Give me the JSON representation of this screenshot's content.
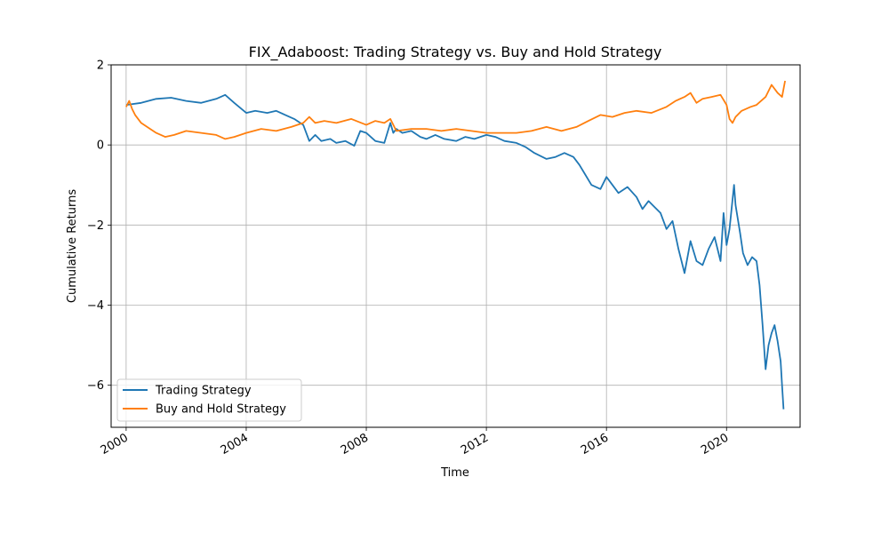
{
  "chart_data": {
    "type": "line",
    "title": "FIX_Adaboost: Trading Strategy vs. Buy and Hold Strategy",
    "xlabel": "Time",
    "ylabel": "Cumulative Returns",
    "xlim": [
      1999.5,
      2022.45
    ],
    "ylim": [
      -7.05,
      2.0
    ],
    "x_ticks": [
      2000,
      2004,
      2008,
      2012,
      2016,
      2020
    ],
    "x_tick_labels": [
      "2000",
      "2004",
      "2008",
      "2012",
      "2016",
      "2020"
    ],
    "y_ticks": [
      2,
      0,
      -2,
      -4,
      -6
    ],
    "y_tick_labels": [
      "2",
      "0",
      "−2",
      "−4",
      "−6"
    ],
    "grid": true,
    "legend_position": "lower-left",
    "series": [
      {
        "name": "Trading Strategy",
        "color": "#1f77b4",
        "x": [
          2000.0,
          2000.5,
          2001.0,
          2001.5,
          2002.0,
          2002.5,
          2003.0,
          2003.3,
          2003.6,
          2004.0,
          2004.3,
          2004.7,
          2005.0,
          2005.3,
          2005.6,
          2005.9,
          2006.1,
          2006.3,
          2006.5,
          2006.8,
          2007.0,
          2007.3,
          2007.6,
          2007.8,
          2008.0,
          2008.3,
          2008.6,
          2008.8,
          2008.9,
          2009.0,
          2009.2,
          2009.5,
          2009.8,
          2010.0,
          2010.3,
          2010.6,
          2011.0,
          2011.3,
          2011.6,
          2012.0,
          2012.3,
          2012.6,
          2013.0,
          2013.3,
          2013.6,
          2014.0,
          2014.3,
          2014.6,
          2014.9,
          2015.1,
          2015.3,
          2015.5,
          2015.8,
          2016.0,
          2016.2,
          2016.4,
          2016.7,
          2017.0,
          2017.2,
          2017.4,
          2017.6,
          2017.8,
          2018.0,
          2018.2,
          2018.4,
          2018.6,
          2018.8,
          2019.0,
          2019.2,
          2019.4,
          2019.6,
          2019.8,
          2019.9,
          2020.0,
          2020.1,
          2020.25,
          2020.3,
          2020.45,
          2020.55,
          2020.7,
          2020.85,
          2021.0,
          2021.1,
          2021.2,
          2021.3,
          2021.4,
          2021.5,
          2021.6,
          2021.7,
          2021.8,
          2021.85,
          2021.9
        ],
        "values": [
          1.0,
          1.05,
          1.15,
          1.18,
          1.1,
          1.05,
          1.15,
          1.25,
          1.05,
          0.8,
          0.85,
          0.8,
          0.85,
          0.75,
          0.65,
          0.5,
          0.1,
          0.25,
          0.1,
          0.15,
          0.05,
          0.1,
          -0.02,
          0.35,
          0.3,
          0.1,
          0.05,
          0.55,
          0.3,
          0.4,
          0.3,
          0.35,
          0.2,
          0.15,
          0.25,
          0.15,
          0.1,
          0.2,
          0.15,
          0.25,
          0.2,
          0.1,
          0.05,
          -0.05,
          -0.2,
          -0.35,
          -0.3,
          -0.2,
          -0.3,
          -0.5,
          -0.75,
          -1.0,
          -1.1,
          -0.8,
          -1.0,
          -1.2,
          -1.05,
          -1.3,
          -1.6,
          -1.4,
          -1.55,
          -1.7,
          -2.1,
          -1.9,
          -2.6,
          -3.2,
          -2.4,
          -2.9,
          -3.0,
          -2.6,
          -2.3,
          -2.9,
          -1.7,
          -2.5,
          -2.1,
          -1.0,
          -1.5,
          -2.2,
          -2.7,
          -3.0,
          -2.8,
          -2.9,
          -3.5,
          -4.5,
          -5.6,
          -5.0,
          -4.7,
          -4.5,
          -4.9,
          -5.4,
          -6.0,
          -6.6
        ]
      },
      {
        "name": "Buy and Hold Strategy",
        "color": "#ff7f0e",
        "x": [
          2000.0,
          2000.1,
          2000.2,
          2000.3,
          2000.5,
          2000.8,
          2001.0,
          2001.3,
          2001.6,
          2002.0,
          2002.5,
          2003.0,
          2003.3,
          2003.6,
          2004.0,
          2004.5,
          2005.0,
          2005.5,
          2005.9,
          2006.1,
          2006.3,
          2006.6,
          2007.0,
          2007.5,
          2008.0,
          2008.3,
          2008.6,
          2008.8,
          2009.0,
          2009.5,
          2010.0,
          2010.5,
          2011.0,
          2011.5,
          2012.0,
          2012.5,
          2013.0,
          2013.5,
          2014.0,
          2014.5,
          2015.0,
          2015.4,
          2015.8,
          2016.2,
          2016.6,
          2017.0,
          2017.5,
          2018.0,
          2018.3,
          2018.6,
          2018.8,
          2019.0,
          2019.2,
          2019.5,
          2019.8,
          2020.0,
          2020.1,
          2020.2,
          2020.3,
          2020.5,
          2020.8,
          2021.0,
          2021.3,
          2021.5,
          2021.7,
          2021.85,
          2021.95
        ],
        "values": [
          0.95,
          1.1,
          0.9,
          0.75,
          0.55,
          0.4,
          0.3,
          0.2,
          0.25,
          0.35,
          0.3,
          0.25,
          0.15,
          0.2,
          0.3,
          0.4,
          0.35,
          0.45,
          0.55,
          0.7,
          0.55,
          0.6,
          0.55,
          0.65,
          0.5,
          0.6,
          0.55,
          0.65,
          0.35,
          0.4,
          0.4,
          0.35,
          0.4,
          0.35,
          0.3,
          0.3,
          0.3,
          0.35,
          0.45,
          0.35,
          0.45,
          0.6,
          0.75,
          0.7,
          0.8,
          0.85,
          0.8,
          0.95,
          1.1,
          1.2,
          1.3,
          1.05,
          1.15,
          1.2,
          1.25,
          1.0,
          0.65,
          0.55,
          0.7,
          0.85,
          0.95,
          1.0,
          1.2,
          1.5,
          1.3,
          1.2,
          1.6
        ]
      }
    ]
  }
}
